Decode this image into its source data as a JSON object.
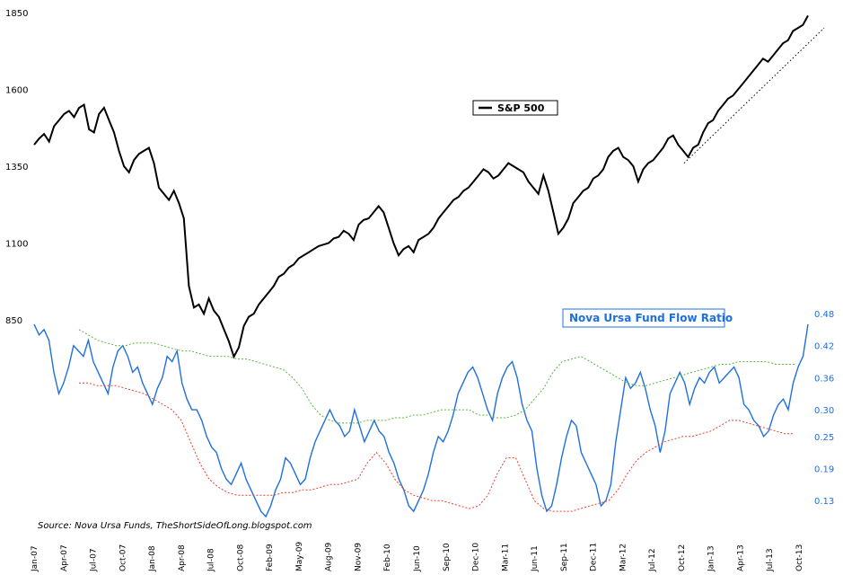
{
  "chart_data": {
    "type": "line",
    "title": "",
    "x_tick_labels": [
      "Jan-07",
      "Apr-07",
      "Jul-07",
      "Oct-07",
      "Jan-08",
      "Apr-08",
      "Jul-08",
      "Oct-08",
      "Feb-09",
      "May-09",
      "Aug-09",
      "Nov-09",
      "Feb-10",
      "Jun-10",
      "Sep-10",
      "Dec-10",
      "Mar-11",
      "Jun-11",
      "Sep-11",
      "Dec-11",
      "Mar-12",
      "Jul-12",
      "Oct-12",
      "Jan-13",
      "Apr-13",
      "Jul-13",
      "Oct-13"
    ],
    "left_axis": {
      "ticks": [
        "1850",
        "1600",
        "1350",
        "1100",
        "850"
      ],
      "range": [
        850,
        1850
      ]
    },
    "right_axis": {
      "ticks": [
        "0.48",
        "0.42",
        "0.36",
        "0.30",
        "0.25",
        "0.19",
        "0.13"
      ],
      "range": [
        0.1,
        0.48
      ]
    },
    "legend_sp": "S&P 500",
    "legend_nova": "Nova Ursa Fund Flow Ratio",
    "source": "Source: Nova Ursa Funds, TheShortSideOfLong.blogspot.com",
    "series": [
      {
        "name": "S&P 500",
        "color": "#000000",
        "axis": "left",
        "values": [
          1420,
          1440,
          1455,
          1430,
          1480,
          1500,
          1520,
          1530,
          1510,
          1540,
          1550,
          1470,
          1460,
          1520,
          1540,
          1500,
          1460,
          1400,
          1350,
          1330,
          1370,
          1390,
          1400,
          1410,
          1360,
          1280,
          1260,
          1240,
          1270,
          1230,
          1180,
          960,
          890,
          900,
          870,
          920,
          880,
          860,
          820,
          780,
          730,
          760,
          830,
          860,
          870,
          900,
          920,
          940,
          960,
          990,
          1000,
          1020,
          1030,
          1050,
          1060,
          1070,
          1080,
          1090,
          1095,
          1100,
          1115,
          1120,
          1140,
          1130,
          1110,
          1160,
          1175,
          1180,
          1200,
          1220,
          1200,
          1150,
          1100,
          1060,
          1080,
          1090,
          1070,
          1110,
          1120,
          1130,
          1150,
          1180,
          1200,
          1220,
          1240,
          1250,
          1270,
          1280,
          1300,
          1320,
          1340,
          1330,
          1310,
          1320,
          1340,
          1360,
          1350,
          1340,
          1330,
          1300,
          1280,
          1260,
          1320,
          1270,
          1200,
          1130,
          1150,
          1180,
          1230,
          1250,
          1270,
          1280,
          1310,
          1320,
          1340,
          1380,
          1400,
          1410,
          1380,
          1370,
          1350,
          1300,
          1340,
          1360,
          1370,
          1390,
          1410,
          1440,
          1450,
          1420,
          1400,
          1380,
          1410,
          1420,
          1460,
          1490,
          1500,
          1530,
          1550,
          1570,
          1580,
          1600,
          1620,
          1640,
          1660,
          1680,
          1700,
          1690,
          1710,
          1730,
          1750,
          1760,
          1790,
          1800,
          1810,
          1840
        ]
      },
      {
        "name": "Nova Ursa Fund Flow Ratio",
        "color": "#1f6fe0",
        "axis": "right",
        "values": [
          0.46,
          0.44,
          0.45,
          0.43,
          0.37,
          0.33,
          0.35,
          0.38,
          0.42,
          0.41,
          0.4,
          0.43,
          0.39,
          0.37,
          0.35,
          0.33,
          0.38,
          0.41,
          0.42,
          0.4,
          0.37,
          0.38,
          0.35,
          0.33,
          0.31,
          0.34,
          0.36,
          0.4,
          0.39,
          0.41,
          0.35,
          0.32,
          0.3,
          0.3,
          0.28,
          0.25,
          0.23,
          0.22,
          0.19,
          0.17,
          0.16,
          0.18,
          0.2,
          0.17,
          0.15,
          0.13,
          0.11,
          0.1,
          0.12,
          0.15,
          0.17,
          0.21,
          0.2,
          0.18,
          0.16,
          0.17,
          0.21,
          0.24,
          0.26,
          0.28,
          0.3,
          0.28,
          0.27,
          0.25,
          0.26,
          0.3,
          0.27,
          0.24,
          0.26,
          0.28,
          0.26,
          0.25,
          0.22,
          0.2,
          0.17,
          0.15,
          0.12,
          0.11,
          0.13,
          0.15,
          0.18,
          0.22,
          0.25,
          0.24,
          0.26,
          0.29,
          0.33,
          0.35,
          0.37,
          0.38,
          0.36,
          0.33,
          0.3,
          0.28,
          0.33,
          0.36,
          0.38,
          0.39,
          0.36,
          0.31,
          0.28,
          0.26,
          0.19,
          0.14,
          0.11,
          0.12,
          0.16,
          0.21,
          0.25,
          0.28,
          0.27,
          0.22,
          0.2,
          0.18,
          0.16,
          0.12,
          0.13,
          0.16,
          0.24,
          0.3,
          0.36,
          0.34,
          0.35,
          0.37,
          0.34,
          0.3,
          0.27,
          0.22,
          0.26,
          0.33,
          0.35,
          0.37,
          0.35,
          0.31,
          0.34,
          0.36,
          0.35,
          0.37,
          0.38,
          0.35,
          0.36,
          0.37,
          0.38,
          0.36,
          0.31,
          0.3,
          0.28,
          0.27,
          0.25,
          0.26,
          0.29,
          0.31,
          0.32,
          0.3,
          0.35,
          0.38,
          0.4,
          0.46
        ]
      },
      {
        "name": "Upper band",
        "color": "#55b93a",
        "axis": "right",
        "values": [
          0.45,
          0.44,
          0.43,
          0.425,
          0.42,
          0.42,
          0.425,
          0.425,
          0.425,
          0.42,
          0.415,
          0.41,
          0.41,
          0.405,
          0.4,
          0.4,
          0.4,
          0.395,
          0.395,
          0.39,
          0.385,
          0.38,
          0.375,
          0.36,
          0.34,
          0.31,
          0.29,
          0.28,
          0.275,
          0.275,
          0.275,
          0.28,
          0.28,
          0.28,
          0.285,
          0.285,
          0.29,
          0.29,
          0.295,
          0.3,
          0.3,
          0.3,
          0.3,
          0.29,
          0.29,
          0.285,
          0.285,
          0.29,
          0.3,
          0.32,
          0.34,
          0.37,
          0.39,
          0.395,
          0.4,
          0.39,
          0.38,
          0.37,
          0.36,
          0.35,
          0.345,
          0.345,
          0.35,
          0.355,
          0.36,
          0.365,
          0.37,
          0.375,
          0.38,
          0.385,
          0.385,
          0.39,
          0.39,
          0.39,
          0.39,
          0.385,
          0.385,
          0.385
        ]
      },
      {
        "name": "Lower band",
        "color": "#e8402a",
        "axis": "right",
        "values": [
          0.35,
          0.35,
          0.345,
          0.345,
          0.345,
          0.34,
          0.335,
          0.33,
          0.32,
          0.31,
          0.3,
          0.28,
          0.24,
          0.2,
          0.17,
          0.155,
          0.145,
          0.14,
          0.14,
          0.14,
          0.14,
          0.14,
          0.145,
          0.145,
          0.15,
          0.15,
          0.155,
          0.16,
          0.16,
          0.165,
          0.17,
          0.2,
          0.22,
          0.2,
          0.17,
          0.15,
          0.14,
          0.135,
          0.13,
          0.13,
          0.125,
          0.12,
          0.115,
          0.12,
          0.14,
          0.18,
          0.21,
          0.21,
          0.17,
          0.13,
          0.115,
          0.11,
          0.11,
          0.11,
          0.115,
          0.12,
          0.125,
          0.13,
          0.15,
          0.18,
          0.205,
          0.22,
          0.23,
          0.24,
          0.245,
          0.25,
          0.25,
          0.255,
          0.26,
          0.27,
          0.28,
          0.28,
          0.275,
          0.27,
          0.265,
          0.26,
          0.255,
          0.255
        ]
      },
      {
        "name": "Trend line",
        "color": "#000000",
        "axis": "left",
        "values": [
          1360,
          1800
        ]
      }
    ]
  }
}
